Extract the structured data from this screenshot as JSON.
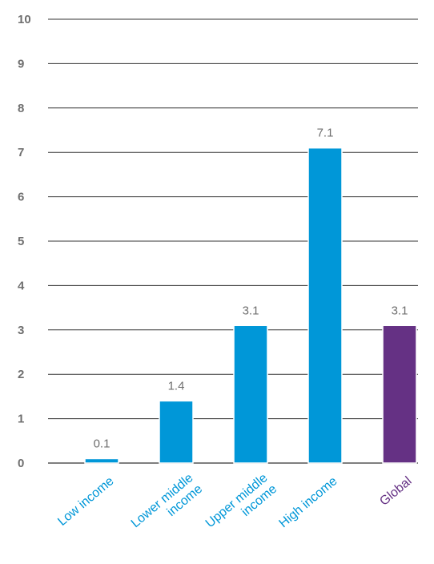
{
  "chart_data": {
    "type": "bar",
    "title": "",
    "xlabel": "",
    "ylabel": "",
    "ylim": [
      0,
      10
    ],
    "yticks": [
      0,
      1,
      2,
      3,
      4,
      5,
      6,
      7,
      8,
      9,
      10
    ],
    "grid": true,
    "categories": [
      {
        "lines": [
          "Low income"
        ],
        "value": 0.1,
        "value_label": "0.1",
        "color": "#0097d8",
        "label_color": "#0097d8"
      },
      {
        "lines": [
          "Lower middle",
          "income"
        ],
        "value": 1.4,
        "value_label": "1.4",
        "color": "#0097d8",
        "label_color": "#0097d8"
      },
      {
        "lines": [
          "Upper middle",
          "income"
        ],
        "value": 3.1,
        "value_label": "3.1",
        "color": "#0097d8",
        "label_color": "#0097d8"
      },
      {
        "lines": [
          "High income"
        ],
        "value": 7.1,
        "value_label": "7.1",
        "color": "#0097d8",
        "label_color": "#0097d8"
      },
      {
        "lines": [
          "Global"
        ],
        "value": 3.1,
        "value_label": "3.1",
        "color": "#653184",
        "label_color": "#653184"
      }
    ],
    "gridline_color": "#333333",
    "axis_color": "#333333"
  }
}
